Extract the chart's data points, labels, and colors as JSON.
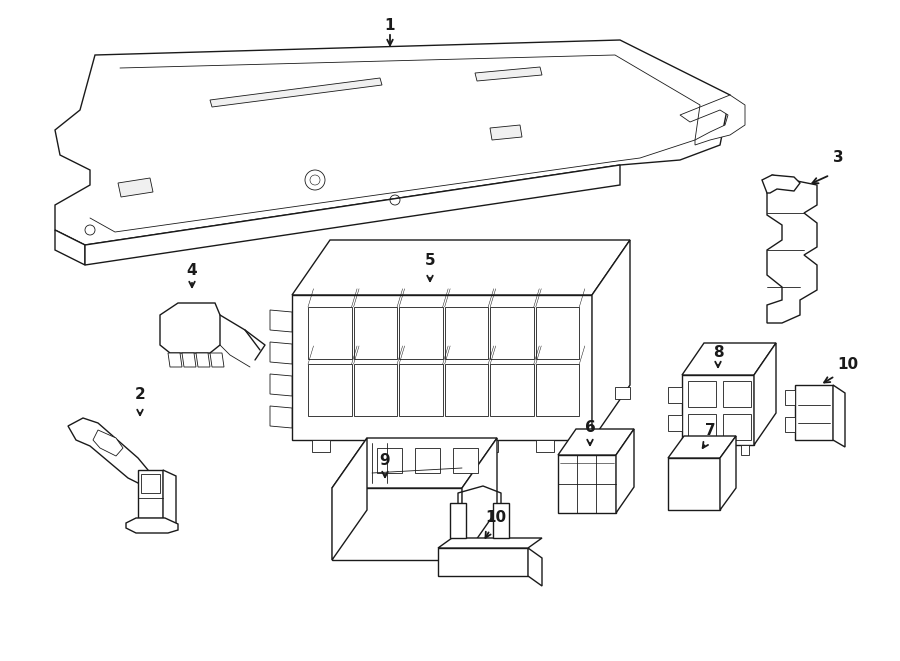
{
  "bg_color": "#ffffff",
  "line_color": "#1a1a1a",
  "fig_width": 9.0,
  "fig_height": 6.61,
  "lw_main": 1.0,
  "lw_detail": 0.6,
  "label_fontsize": 11
}
